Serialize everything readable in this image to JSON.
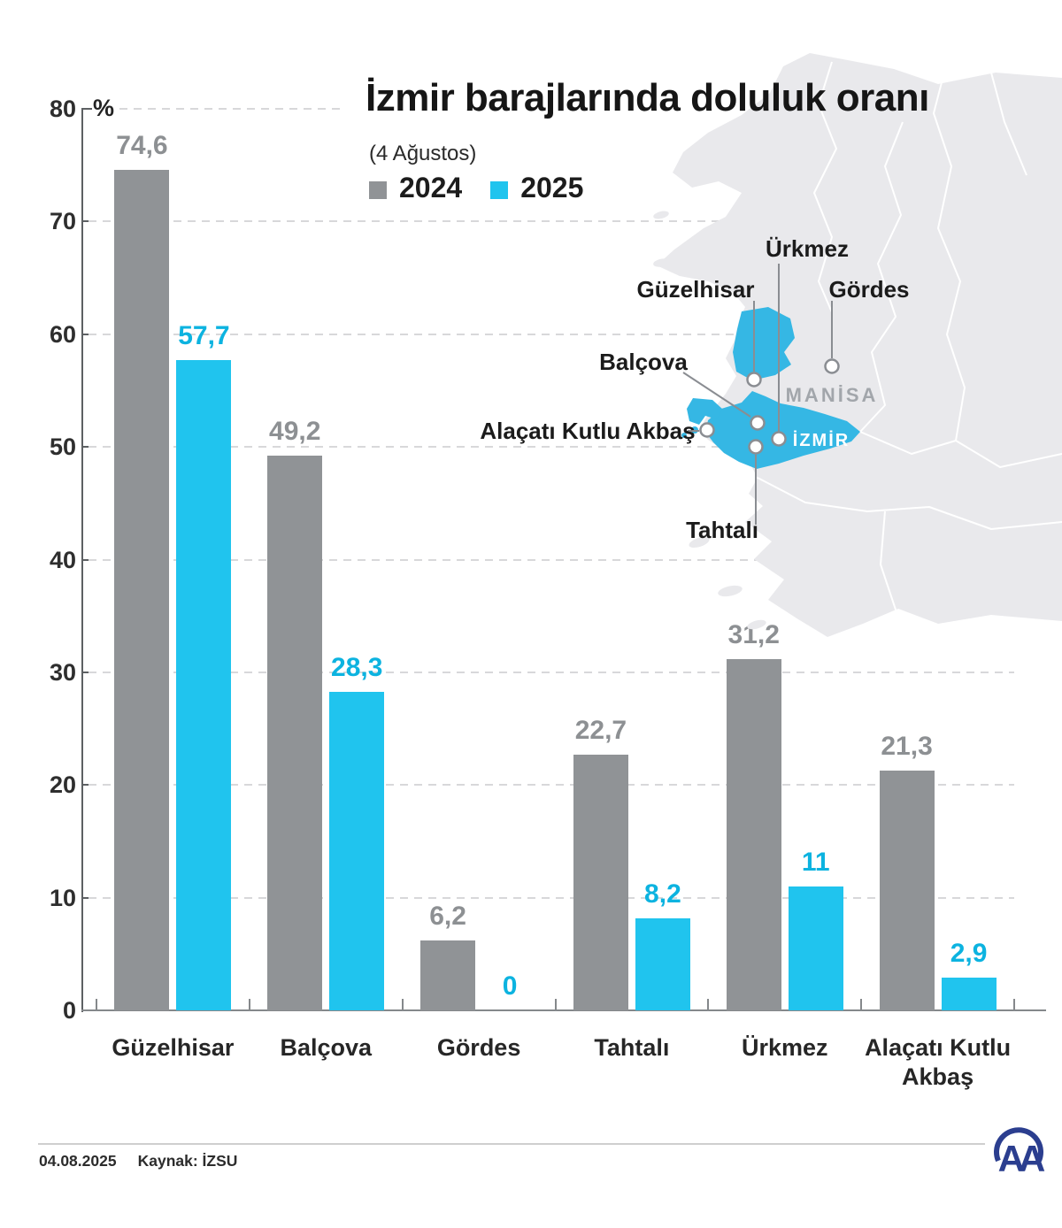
{
  "title": "İzmir barajlarında doluluk oranı",
  "subtitle": "(4 Ağustos)",
  "legend": [
    {
      "label": "2024",
      "color": "#909396"
    },
    {
      "label": "2025",
      "color": "#20c4ee"
    }
  ],
  "y_axis": {
    "unit": "%",
    "ticks": [
      80,
      70,
      60,
      50,
      40,
      30,
      20,
      10,
      0
    ]
  },
  "chart_data": {
    "type": "bar",
    "title": "İzmir barajlarında doluluk oranı",
    "subtitle": "(4 Ağustos)",
    "ylabel": "%",
    "ylim": [
      0,
      80
    ],
    "grid": "horizontal-dashed",
    "legend_position": "top-left",
    "categories": [
      "Güzelhisar",
      "Balçova",
      "Gördes",
      "Tahtalı",
      "Ürkmez",
      "Alaçatı Kutlu Akbaş"
    ],
    "series": [
      {
        "name": "2024",
        "color": "#909396",
        "label_color": "#8d9093",
        "values": [
          74.6,
          49.2,
          6.2,
          22.7,
          31.2,
          21.3
        ],
        "labels": [
          "74,6",
          "49,2",
          "6,2",
          "22,7",
          "31,2",
          "21,3"
        ]
      },
      {
        "name": "2025",
        "color": "#20c4ee",
        "label_color": "#0cb3e0",
        "values": [
          57.7,
          28.3,
          0,
          8.2,
          11,
          2.9
        ],
        "labels": [
          "57,7",
          "28,3",
          "0",
          "8,2",
          "11",
          "2,9"
        ]
      }
    ]
  },
  "map": {
    "land_color": "#e9e9ec",
    "highlight_color": "#35b7e4",
    "region_labels": {
      "manisa": "MANİSA",
      "izmir": "İZMİR"
    },
    "dam_labels": {
      "urkmez": "Ürkmez",
      "guzelhisar": "Güzelhisar",
      "gordes": "Gördes",
      "balcova": "Balçova",
      "alacati": "Alaçatı Kutlu Akbaş",
      "tahtali": "Tahtalı"
    }
  },
  "footer": {
    "date": "04.08.2025",
    "source": "Kaynak: İZSU",
    "logo": "AA",
    "logo_color": "#2b3e8f"
  }
}
